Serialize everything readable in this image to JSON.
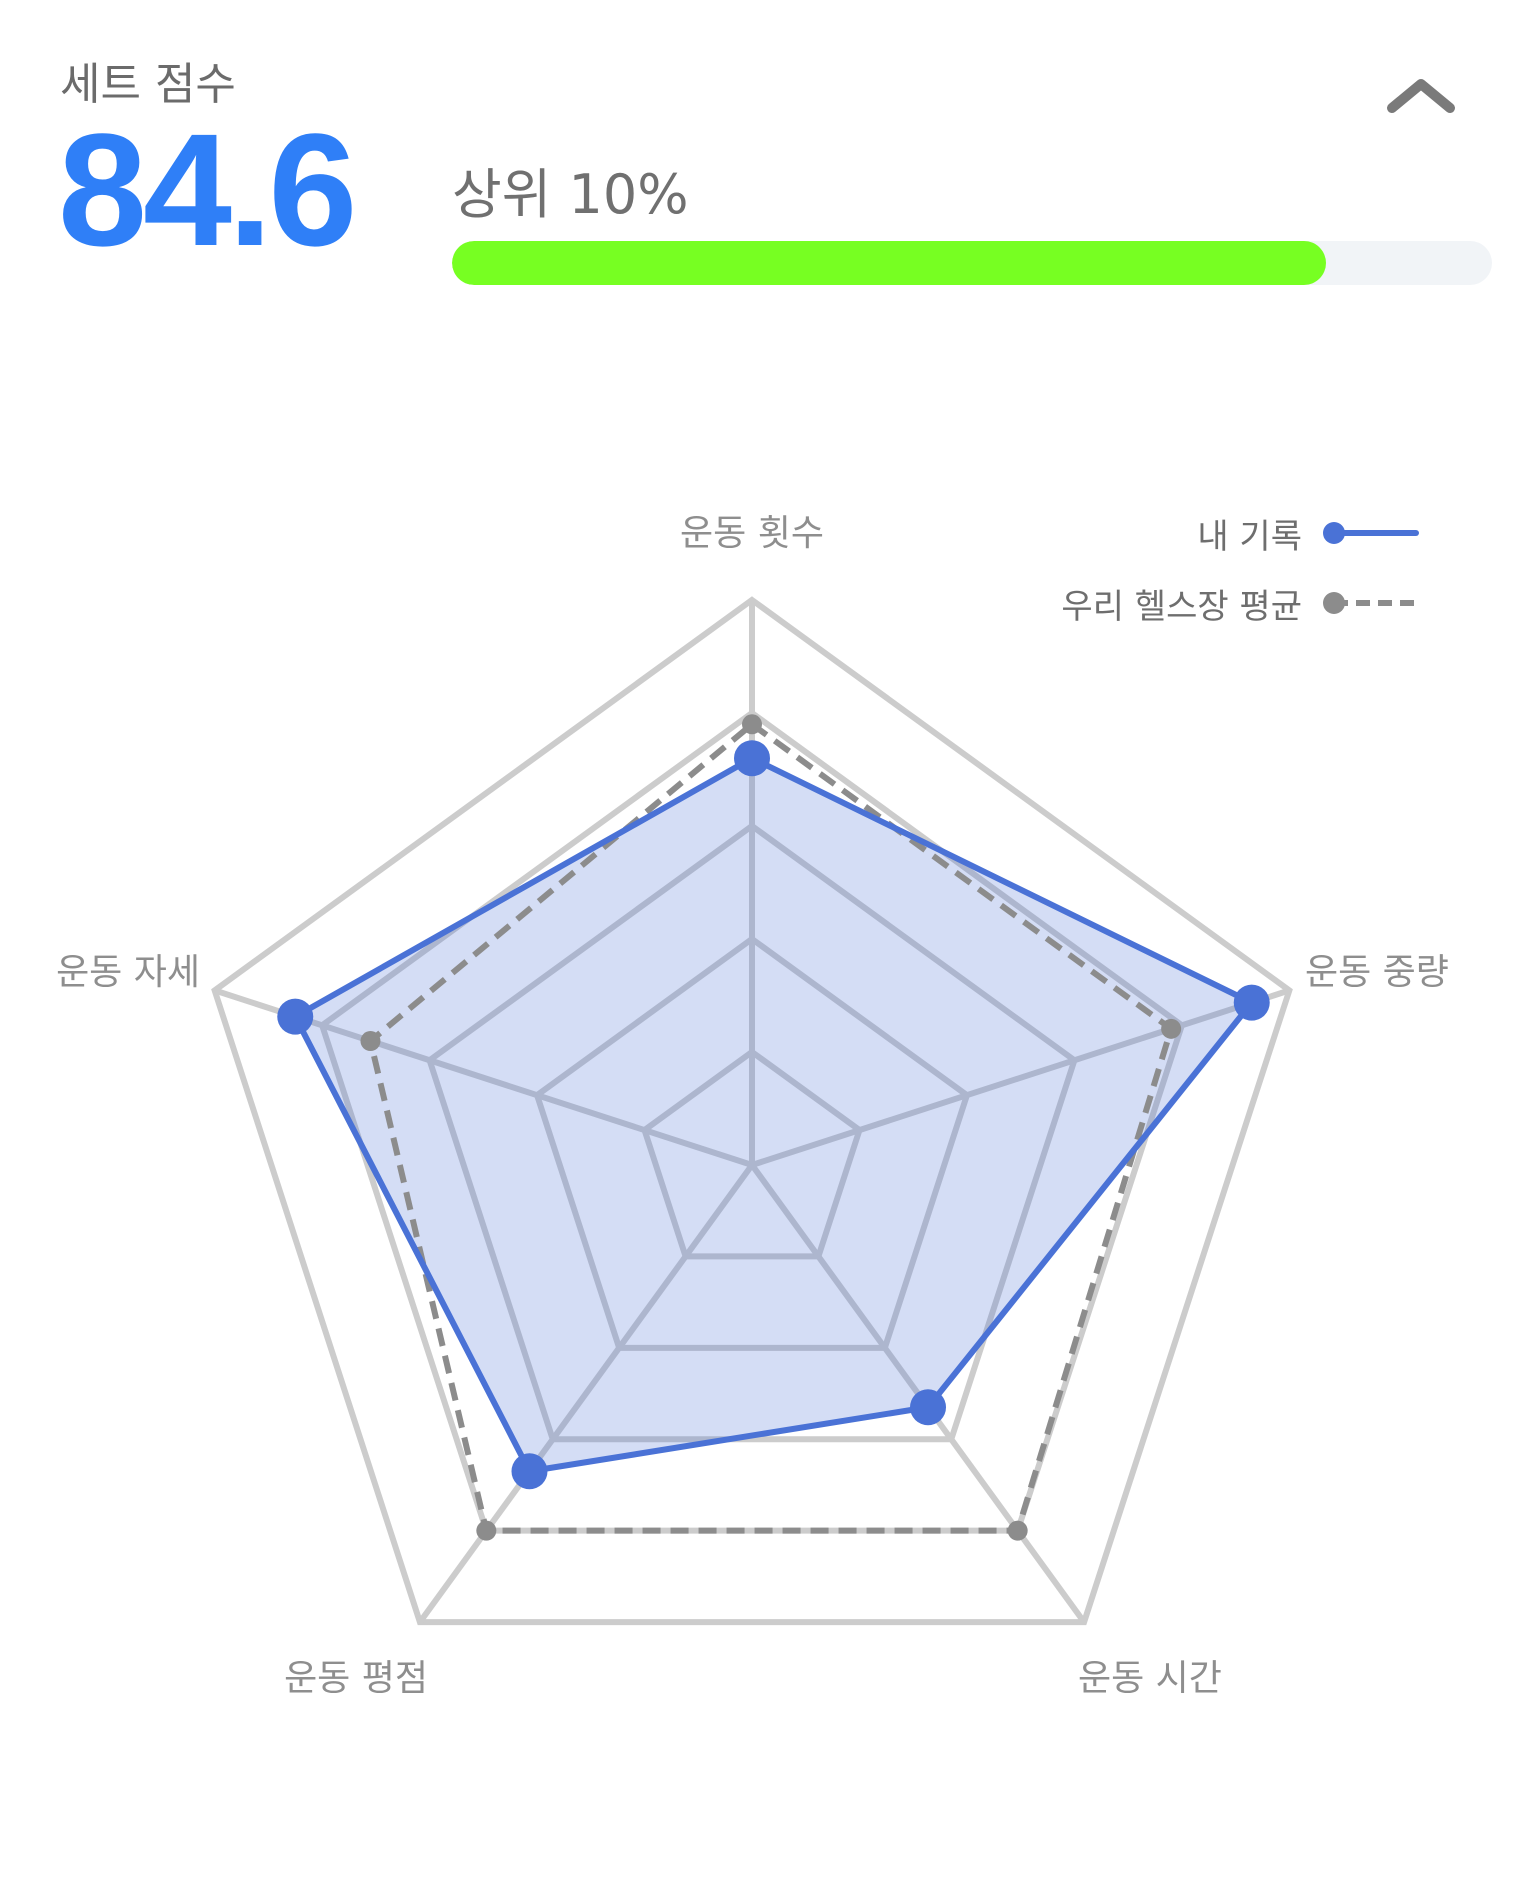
{
  "header": {
    "title": "세트 점수",
    "score": "84.6",
    "rank_text": "상위 10%",
    "progress_fraction": 0.84
  },
  "colors": {
    "score_blue": "#2f7ff7",
    "progress_green": "#77ff22",
    "progress_track": "#f1f4f7",
    "my_record": "#4a72d6",
    "gym_average": "#8c8c8c",
    "grid": "#cccccc"
  },
  "icons": {
    "collapse": "chevron-up-icon"
  },
  "chart_data": {
    "type": "radar",
    "axes": [
      "운동 횟수",
      "운동 중량",
      "운동 시간",
      "운동 평점",
      "운동 자세"
    ],
    "scale_max": 100,
    "grid_levels": 5,
    "series": [
      {
        "name": "내 기록",
        "values": [
          72,
          93,
          53,
          67,
          85
        ],
        "style": "solid-filled"
      },
      {
        "name": "우리 헬스장 평균",
        "values": [
          78,
          78,
          80,
          80,
          71
        ],
        "style": "dashed"
      }
    ],
    "legend": [
      "내 기록",
      "우리 헬스장 평균"
    ],
    "legend_position": "top-right"
  }
}
